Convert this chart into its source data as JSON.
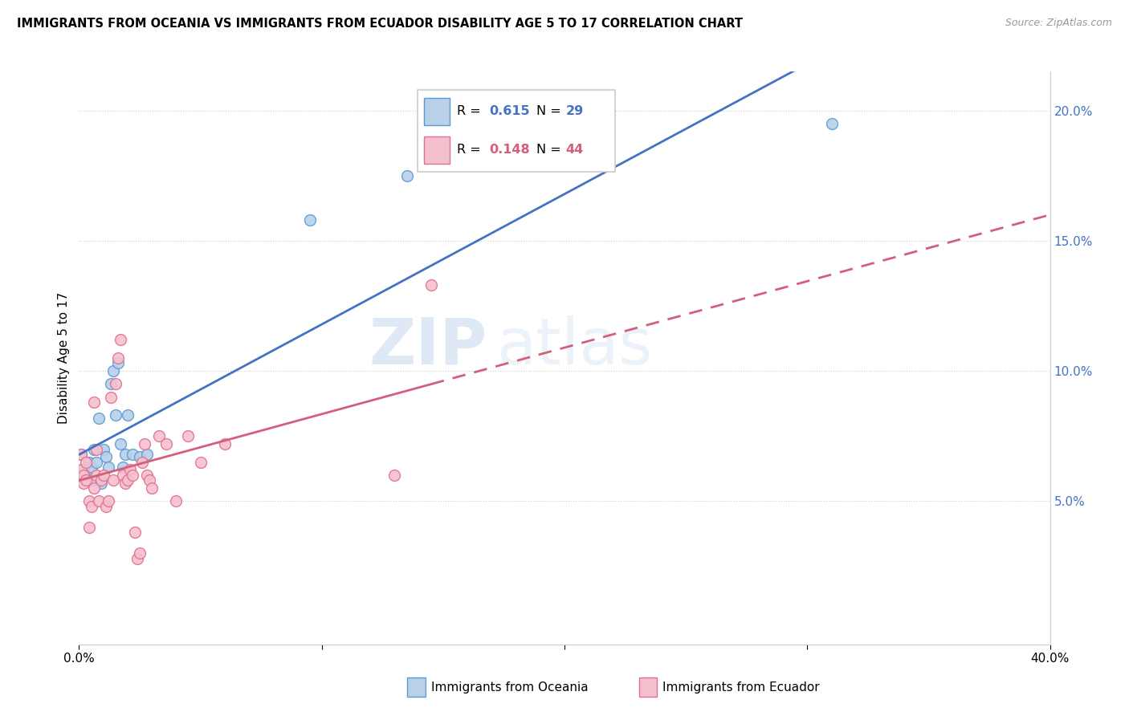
{
  "title": "IMMIGRANTS FROM OCEANIA VS IMMIGRANTS FROM ECUADOR DISABILITY AGE 5 TO 17 CORRELATION CHART",
  "source": "Source: ZipAtlas.com",
  "ylabel": "Disability Age 5 to 17",
  "xlim": [
    0.0,
    0.4
  ],
  "ylim": [
    -0.005,
    0.215
  ],
  "yticks_right": [
    0.05,
    0.1,
    0.15,
    0.2
  ],
  "yticklabels_right": [
    "5.0%",
    "10.0%",
    "15.0%",
    "20.0%"
  ],
  "color_oceania_fill": "#b8d0e8",
  "color_oceania_edge": "#5b9bd5",
  "color_ecuador_fill": "#f5c0ce",
  "color_ecuador_edge": "#e07090",
  "color_line_oceania": "#4472c4",
  "color_line_ecuador": "#d45f7a",
  "watermark_zip": "ZIP",
  "watermark_atlas": "atlas",
  "oceania_x": [
    0.001,
    0.002,
    0.003,
    0.004,
    0.005,
    0.005,
    0.006,
    0.007,
    0.008,
    0.009,
    0.01,
    0.011,
    0.012,
    0.013,
    0.014,
    0.015,
    0.016,
    0.017,
    0.018,
    0.019,
    0.02,
    0.022,
    0.025,
    0.028,
    0.095,
    0.135,
    0.31
  ],
  "oceania_y": [
    0.068,
    0.062,
    0.06,
    0.065,
    0.063,
    0.058,
    0.07,
    0.065,
    0.082,
    0.057,
    0.07,
    0.067,
    0.063,
    0.095,
    0.1,
    0.083,
    0.103,
    0.072,
    0.063,
    0.068,
    0.083,
    0.068,
    0.067,
    0.068,
    0.158,
    0.175,
    0.195
  ],
  "ecuador_x": [
    0.001,
    0.001,
    0.002,
    0.002,
    0.003,
    0.003,
    0.004,
    0.004,
    0.005,
    0.006,
    0.006,
    0.007,
    0.007,
    0.008,
    0.009,
    0.01,
    0.011,
    0.012,
    0.013,
    0.014,
    0.015,
    0.016,
    0.017,
    0.018,
    0.019,
    0.02,
    0.021,
    0.022,
    0.023,
    0.024,
    0.025,
    0.026,
    0.027,
    0.028,
    0.029,
    0.03,
    0.033,
    0.036,
    0.04,
    0.045,
    0.05,
    0.06,
    0.13,
    0.145
  ],
  "ecuador_y": [
    0.068,
    0.062,
    0.06,
    0.057,
    0.058,
    0.065,
    0.05,
    0.04,
    0.048,
    0.055,
    0.088,
    0.06,
    0.07,
    0.05,
    0.058,
    0.06,
    0.048,
    0.05,
    0.09,
    0.058,
    0.095,
    0.105,
    0.112,
    0.06,
    0.057,
    0.058,
    0.062,
    0.06,
    0.038,
    0.028,
    0.03,
    0.065,
    0.072,
    0.06,
    0.058,
    0.055,
    0.075,
    0.072,
    0.05,
    0.075,
    0.065,
    0.072,
    0.06,
    0.133
  ]
}
